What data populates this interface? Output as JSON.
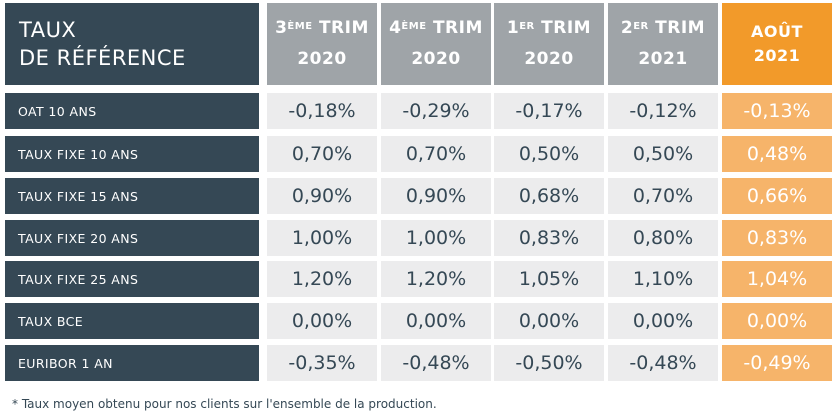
{
  "table": {
    "corner": {
      "line1": "TAUX",
      "line2": "DE RÉFÉRENCE"
    },
    "columns": [
      {
        "num": "3",
        "sup": "ÈME",
        "rest": " TRIM",
        "year": "2020"
      },
      {
        "num": "4",
        "sup": "ÈME",
        "rest": " TRIM",
        "year": "2020"
      },
      {
        "num": "1",
        "sup": "ER",
        "rest": " TRIM",
        "year": "2020"
      },
      {
        "num": "2",
        "sup": "ER",
        "rest": " TRIM",
        "year": "2021"
      },
      {
        "num": "AOÛT",
        "sup": "",
        "rest": "",
        "year": "2021"
      }
    ],
    "rows": [
      {
        "label": "OAT 10 ANS",
        "values": [
          "-0,18%",
          "-0,29%",
          "-0,17%",
          "-0,12%",
          "-0,13%"
        ]
      },
      {
        "label": "TAUX FIXE 10 ANS",
        "values": [
          "0,70%",
          "0,70%",
          "0,50%",
          "0,50%",
          "0,48%"
        ]
      },
      {
        "label": "TAUX FIXE 15 ANS",
        "values": [
          "0,90%",
          "0,90%",
          "0,68%",
          "0,70%",
          "0,66%"
        ]
      },
      {
        "label": "TAUX FIXE 20 ANS",
        "values": [
          "1,00%",
          "1,00%",
          "0,83%",
          "0,80%",
          "0,83%"
        ]
      },
      {
        "label": "TAUX FIXE 25 ANS",
        "values": [
          "1,20%",
          "1,20%",
          "1,05%",
          "1,10%",
          "1,04%"
        ]
      },
      {
        "label": "TAUX BCE",
        "values": [
          "0,00%",
          "0,00%",
          "0,00%",
          "0,00%",
          "0,00%"
        ]
      },
      {
        "label": "EURIBOR 1 AN",
        "values": [
          "-0,35%",
          "-0,48%",
          "-0,50%",
          "-0,48%",
          "-0,49%"
        ]
      }
    ]
  },
  "footnote": "* Taux moyen obtenu pour nos clients sur l'ensemble de la production.",
  "colors": {
    "dark": "#354855",
    "gray_header": "#9fa4a8",
    "light_cell": "#ececed",
    "accent": "#f29a2a",
    "accent_light": "#f6b46a"
  }
}
